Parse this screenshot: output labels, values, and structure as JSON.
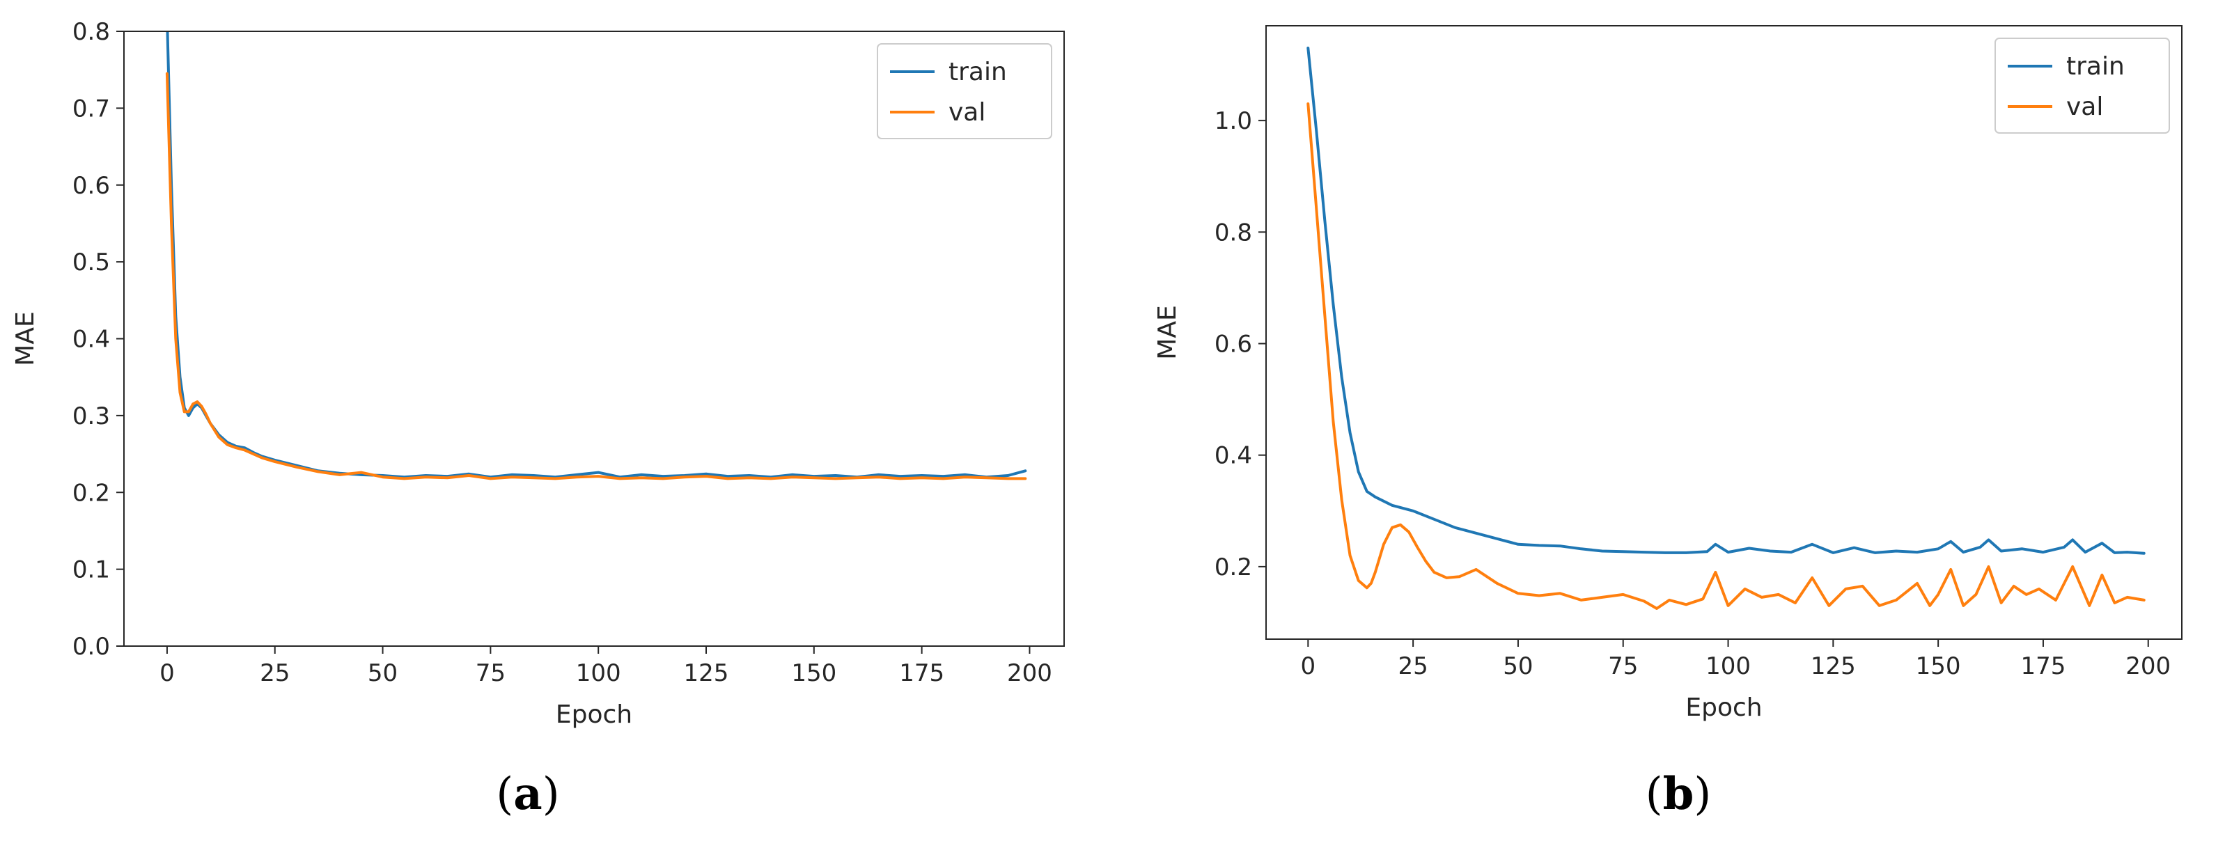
{
  "chart_data": [
    {
      "panel_label": "a",
      "type": "line",
      "xlabel": "Epoch",
      "ylabel": "MAE",
      "xlim": [
        -10,
        208
      ],
      "ylim": [
        0.0,
        0.8
      ],
      "xticks": [
        0,
        25,
        50,
        75,
        100,
        125,
        150,
        175,
        200
      ],
      "xtick_labels": [
        "0",
        "25",
        "50",
        "75",
        "100",
        "125",
        "150",
        "175",
        "200"
      ],
      "yticks": [
        0.0,
        0.1,
        0.2,
        0.3,
        0.4,
        0.5,
        0.6,
        0.7,
        0.8
      ],
      "ytick_labels": [
        "0.0",
        "0.1",
        "0.2",
        "0.3",
        "0.4",
        "0.5",
        "0.6",
        "0.7",
        "0.8"
      ],
      "grid": false,
      "legend_position": "top-right",
      "series": [
        {
          "name": "train",
          "color": "#1f77b4",
          "x": [
            0,
            1,
            2,
            3,
            4,
            5,
            6,
            7,
            8,
            9,
            10,
            12,
            14,
            16,
            18,
            20,
            22,
            25,
            30,
            35,
            40,
            45,
            50,
            55,
            60,
            65,
            70,
            75,
            80,
            85,
            90,
            95,
            100,
            105,
            110,
            115,
            120,
            125,
            130,
            135,
            140,
            145,
            150,
            155,
            160,
            165,
            170,
            175,
            180,
            185,
            190,
            195,
            199
          ],
          "y": [
            0.82,
            0.6,
            0.43,
            0.35,
            0.31,
            0.3,
            0.31,
            0.315,
            0.31,
            0.3,
            0.29,
            0.275,
            0.265,
            0.26,
            0.258,
            0.252,
            0.247,
            0.242,
            0.235,
            0.228,
            0.225,
            0.223,
            0.222,
            0.22,
            0.222,
            0.221,
            0.224,
            0.22,
            0.223,
            0.222,
            0.22,
            0.223,
            0.226,
            0.22,
            0.223,
            0.221,
            0.222,
            0.224,
            0.221,
            0.222,
            0.22,
            0.223,
            0.221,
            0.222,
            0.22,
            0.223,
            0.221,
            0.222,
            0.221,
            0.223,
            0.22,
            0.222,
            0.228
          ]
        },
        {
          "name": "val",
          "color": "#ff7f0e",
          "x": [
            0,
            1,
            2,
            3,
            4,
            5,
            6,
            7,
            8,
            9,
            10,
            12,
            14,
            16,
            18,
            20,
            22,
            25,
            30,
            35,
            40,
            45,
            50,
            55,
            60,
            65,
            70,
            75,
            80,
            85,
            90,
            95,
            100,
            105,
            110,
            115,
            120,
            125,
            130,
            135,
            140,
            145,
            150,
            155,
            160,
            165,
            170,
            175,
            180,
            185,
            190,
            195,
            199
          ],
          "y": [
            0.745,
            0.55,
            0.4,
            0.33,
            0.305,
            0.305,
            0.315,
            0.318,
            0.312,
            0.302,
            0.29,
            0.272,
            0.262,
            0.258,
            0.255,
            0.25,
            0.245,
            0.24,
            0.233,
            0.227,
            0.223,
            0.226,
            0.22,
            0.218,
            0.22,
            0.219,
            0.222,
            0.218,
            0.22,
            0.219,
            0.218,
            0.22,
            0.221,
            0.218,
            0.219,
            0.218,
            0.22,
            0.221,
            0.218,
            0.219,
            0.218,
            0.22,
            0.219,
            0.218,
            0.219,
            0.22,
            0.218,
            0.219,
            0.218,
            0.22,
            0.219,
            0.218,
            0.218
          ]
        }
      ]
    },
    {
      "panel_label": "b",
      "type": "line",
      "xlabel": "Epoch",
      "ylabel": "MAE",
      "xlim": [
        -10,
        208
      ],
      "ylim": [
        0.07,
        1.17
      ],
      "xticks": [
        0,
        25,
        50,
        75,
        100,
        125,
        150,
        175,
        200
      ],
      "xtick_labels": [
        "0",
        "25",
        "50",
        "75",
        "100",
        "125",
        "150",
        "175",
        "200"
      ],
      "yticks": [
        0.2,
        0.4,
        0.6,
        0.8,
        1.0
      ],
      "ytick_labels": [
        "0.2",
        "0.4",
        "0.6",
        "0.8",
        "1.0"
      ],
      "grid": false,
      "legend_position": "top-right",
      "series": [
        {
          "name": "train",
          "color": "#1f77b4",
          "x": [
            0,
            2,
            4,
            6,
            8,
            10,
            12,
            14,
            16,
            20,
            25,
            30,
            35,
            40,
            45,
            50,
            55,
            60,
            65,
            70,
            75,
            80,
            85,
            90,
            95,
            97,
            100,
            105,
            110,
            115,
            120,
            125,
            130,
            135,
            140,
            145,
            150,
            153,
            156,
            160,
            162,
            165,
            170,
            175,
            180,
            182,
            185,
            189,
            192,
            195,
            199
          ],
          "y": [
            1.13,
            0.98,
            0.82,
            0.67,
            0.54,
            0.44,
            0.37,
            0.335,
            0.325,
            0.31,
            0.3,
            0.285,
            0.27,
            0.26,
            0.25,
            0.24,
            0.238,
            0.237,
            0.232,
            0.228,
            0.227,
            0.226,
            0.225,
            0.225,
            0.227,
            0.24,
            0.226,
            0.233,
            0.228,
            0.226,
            0.24,
            0.225,
            0.234,
            0.225,
            0.228,
            0.226,
            0.232,
            0.245,
            0.226,
            0.235,
            0.248,
            0.228,
            0.232,
            0.226,
            0.235,
            0.248,
            0.226,
            0.242,
            0.225,
            0.226,
            0.224
          ]
        },
        {
          "name": "val",
          "color": "#ff7f0e",
          "x": [
            0,
            2,
            4,
            6,
            8,
            10,
            12,
            14,
            15,
            16,
            18,
            20,
            22,
            24,
            26,
            28,
            30,
            33,
            36,
            40,
            45,
            50,
            55,
            60,
            65,
            70,
            75,
            80,
            83,
            86,
            90,
            94,
            97,
            100,
            104,
            108,
            112,
            116,
            120,
            124,
            128,
            132,
            136,
            140,
            145,
            148,
            150,
            153,
            156,
            159,
            162,
            165,
            168,
            171,
            174,
            178,
            182,
            186,
            189,
            192,
            195,
            199
          ],
          "y": [
            1.03,
            0.84,
            0.65,
            0.46,
            0.32,
            0.22,
            0.175,
            0.162,
            0.17,
            0.19,
            0.24,
            0.27,
            0.275,
            0.262,
            0.235,
            0.21,
            0.19,
            0.18,
            0.182,
            0.195,
            0.17,
            0.152,
            0.148,
            0.152,
            0.14,
            0.145,
            0.15,
            0.138,
            0.125,
            0.14,
            0.132,
            0.142,
            0.19,
            0.13,
            0.16,
            0.145,
            0.15,
            0.135,
            0.18,
            0.13,
            0.16,
            0.165,
            0.13,
            0.14,
            0.17,
            0.13,
            0.15,
            0.195,
            0.13,
            0.15,
            0.2,
            0.135,
            0.165,
            0.15,
            0.16,
            0.14,
            0.2,
            0.13,
            0.185,
            0.135,
            0.145,
            0.14
          ]
        }
      ]
    }
  ]
}
